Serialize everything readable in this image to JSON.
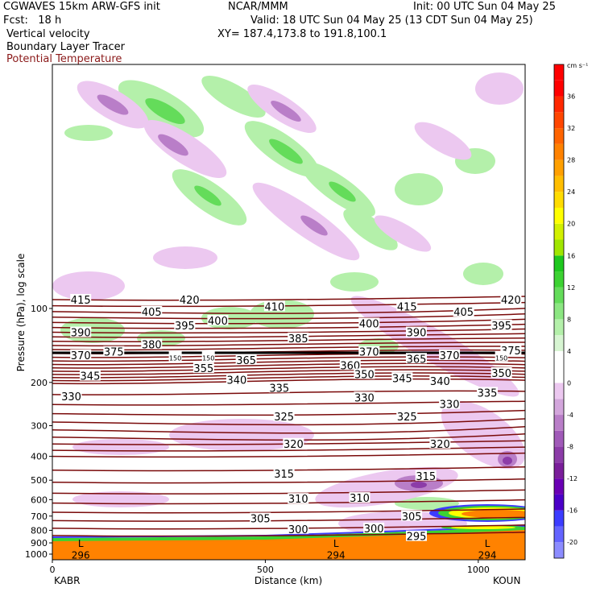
{
  "header": {
    "model": "CGWAVES 15km ARW-GFS init",
    "center": "NCAR/MMM",
    "init": "Init: 00 UTC Sun 04 May 25",
    "fcst": "Fcst:   18 h",
    "valid": "Valid: 18 UTC Sun 04 May 25 (13 CDT Sun 04 May 25)",
    "field1": "Vertical velocity",
    "xy": "XY= 187.4,173.8 to 191.8,100.1",
    "field2": "Boundary Layer Tracer",
    "field3": "Potential Temperature",
    "field3_color": "#8b1a1a"
  },
  "chart_data": {
    "type": "cross-section",
    "xlabel": "Distance (km)",
    "ylabel": "Pressure (hPa), log scale",
    "x_ticks": [
      0,
      500,
      1000
    ],
    "x_range": [
      0,
      1110
    ],
    "y_ticks": [
      100,
      200,
      300,
      400,
      500,
      600,
      700,
      800,
      900,
      1000
    ],
    "y_scale": "log",
    "left_endpoint": "KABR",
    "right_endpoint": "KOUN",
    "colorbar": {
      "unit": "cm s⁻¹",
      "levels": [
        -22,
        -20,
        -18,
        -16,
        -14,
        -12,
        -10,
        -8,
        -6,
        -4,
        -2,
        0,
        2,
        4,
        6,
        8,
        10,
        12,
        14,
        16,
        18,
        20,
        22,
        24,
        26,
        28,
        30,
        32,
        34,
        36,
        38,
        40
      ],
      "colors": [
        "#8c8cff",
        "#6464ff",
        "#3c3cff",
        "#4b00c8",
        "#6a00b4",
        "#7a1e9a",
        "#8c3ca8",
        "#a05ab8",
        "#b97ec8",
        "#d3a6dc",
        "#ecc8f0",
        "#ffffff",
        "#ffffff",
        "#d7f5d2",
        "#b4f0aa",
        "#8ce682",
        "#64dc5a",
        "#3cd232",
        "#1ec81e",
        "#a0e600",
        "#d2f000",
        "#ffff00",
        "#ffdc00",
        "#ffbe00",
        "#ffa000",
        "#ff8200",
        "#ff6400",
        "#ff4600",
        "#ff2800",
        "#ff0000",
        "#ff0000"
      ],
      "labels": [
        -20,
        -16,
        -12,
        -8,
        -4,
        0,
        4,
        8,
        12,
        16,
        20,
        24,
        28,
        32,
        36
      ]
    },
    "isentrope_labels": [
      {
        "v": "415",
        "x": 0.06,
        "p": 92
      },
      {
        "v": "420",
        "x": 0.29,
        "p": 92
      },
      {
        "v": "410",
        "x": 0.47,
        "p": 98
      },
      {
        "v": "415",
        "x": 0.75,
        "p": 98
      },
      {
        "v": "420",
        "x": 0.97,
        "p": 92
      },
      {
        "v": "405",
        "x": 0.21,
        "p": 103
      },
      {
        "v": "400",
        "x": 0.35,
        "p": 112
      },
      {
        "v": "405",
        "x": 0.87,
        "p": 103
      },
      {
        "v": "390",
        "x": 0.06,
        "p": 125
      },
      {
        "v": "395",
        "x": 0.28,
        "p": 117
      },
      {
        "v": "400",
        "x": 0.67,
        "p": 115
      },
      {
        "v": "390",
        "x": 0.77,
        "p": 125
      },
      {
        "v": "395",
        "x": 0.95,
        "p": 117
      },
      {
        "v": "385",
        "x": 0.52,
        "p": 132
      },
      {
        "v": "380",
        "x": 0.21,
        "p": 140
      },
      {
        "v": "370",
        "x": 0.06,
        "p": 155
      },
      {
        "v": "375",
        "x": 0.13,
        "p": 150
      },
      {
        "v": "370",
        "x": 0.67,
        "p": 150
      },
      {
        "v": "370",
        "x": 0.84,
        "p": 155
      },
      {
        "v": "375",
        "x": 0.97,
        "p": 148
      },
      {
        "v": "150",
        "x": 0.26,
        "p": 157
      },
      {
        "v": "150",
        "x": 0.33,
        "p": 157
      },
      {
        "v": "150",
        "x": 0.95,
        "p": 157
      },
      {
        "v": "365",
        "x": 0.41,
        "p": 162
      },
      {
        "v": "365",
        "x": 0.77,
        "p": 160
      },
      {
        "v": "360",
        "x": 0.63,
        "p": 170
      },
      {
        "v": "355",
        "x": 0.32,
        "p": 175
      },
      {
        "v": "350",
        "x": 0.66,
        "p": 185
      },
      {
        "v": "350",
        "x": 0.95,
        "p": 183
      },
      {
        "v": "345",
        "x": 0.08,
        "p": 188
      },
      {
        "v": "345",
        "x": 0.74,
        "p": 192
      },
      {
        "v": "340",
        "x": 0.39,
        "p": 195
      },
      {
        "v": "340",
        "x": 0.82,
        "p": 197
      },
      {
        "v": "335",
        "x": 0.48,
        "p": 210
      },
      {
        "v": "335",
        "x": 0.92,
        "p": 220
      },
      {
        "v": "330",
        "x": 0.04,
        "p": 228
      },
      {
        "v": "330",
        "x": 0.66,
        "p": 230
      },
      {
        "v": "330",
        "x": 0.84,
        "p": 245
      },
      {
        "v": "325",
        "x": 0.49,
        "p": 275
      },
      {
        "v": "325",
        "x": 0.75,
        "p": 275
      },
      {
        "v": "320",
        "x": 0.51,
        "p": 355
      },
      {
        "v": "320",
        "x": 0.82,
        "p": 355
      },
      {
        "v": "315",
        "x": 0.49,
        "p": 470
      },
      {
        "v": "315",
        "x": 0.79,
        "p": 480
      },
      {
        "v": "310",
        "x": 0.52,
        "p": 595
      },
      {
        "v": "310",
        "x": 0.65,
        "p": 590
      },
      {
        "v": "305",
        "x": 0.44,
        "p": 715
      },
      {
        "v": "305",
        "x": 0.76,
        "p": 700
      },
      {
        "v": "300",
        "x": 0.52,
        "p": 790
      },
      {
        "v": "300",
        "x": 0.68,
        "p": 785
      },
      {
        "v": "295",
        "x": 0.77,
        "p": 845
      }
    ],
    "surface_labels": [
      {
        "v": "296",
        "x": 0.06,
        "p": 1010
      },
      {
        "v": "294",
        "x": 0.6,
        "p": 1010
      },
      {
        "v": "294",
        "x": 0.92,
        "p": 1010
      }
    ],
    "low_markers": [
      {
        "v": "L",
        "x": 0.06,
        "p": 920
      },
      {
        "v": "L",
        "x": 0.6,
        "p": 920
      },
      {
        "v": "L",
        "x": 0.92,
        "p": 920
      }
    ]
  }
}
